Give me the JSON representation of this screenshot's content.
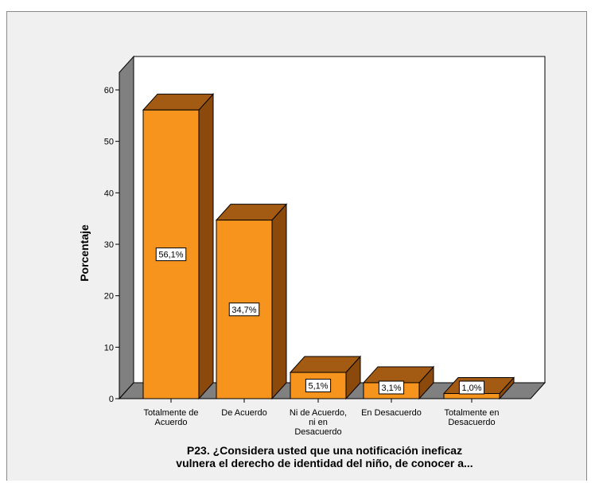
{
  "chart_data": {
    "type": "bar",
    "title": "",
    "ylabel": "Porcentaje",
    "xlabel_lines": [
      "P23. ¿Considera usted que una notificación ineficaz",
      "vulnera el derecho de identidad del niño, de conocer a..."
    ],
    "ylim": [
      0,
      60
    ],
    "yticks": [
      0,
      10,
      20,
      30,
      40,
      50,
      60
    ],
    "categories": [
      [
        "Totalmente de",
        "Acuerdo"
      ],
      [
        "De Acuerdo"
      ],
      [
        "Ni de Acuerdo,",
        "ni en",
        "Desacuerdo"
      ],
      [
        "En Desacuerdo"
      ],
      [
        "Totalmente en",
        "Desacuerdo"
      ]
    ],
    "values": [
      56.1,
      34.7,
      5.1,
      3.1,
      1.0
    ],
    "labels": [
      "56,1%",
      "34,7%",
      "5,1%",
      "3,1%",
      "1,0%"
    ],
    "bar_3d": true,
    "grid": false,
    "colors": {
      "bar_front": "#f7941d",
      "bar_side": "#8b4a0c",
      "bar_top": "#a35a12",
      "back_wall": "#ffffff",
      "side_wall": "#808080",
      "floor": "#808080",
      "frame_bg": "#f0f0f0"
    }
  }
}
